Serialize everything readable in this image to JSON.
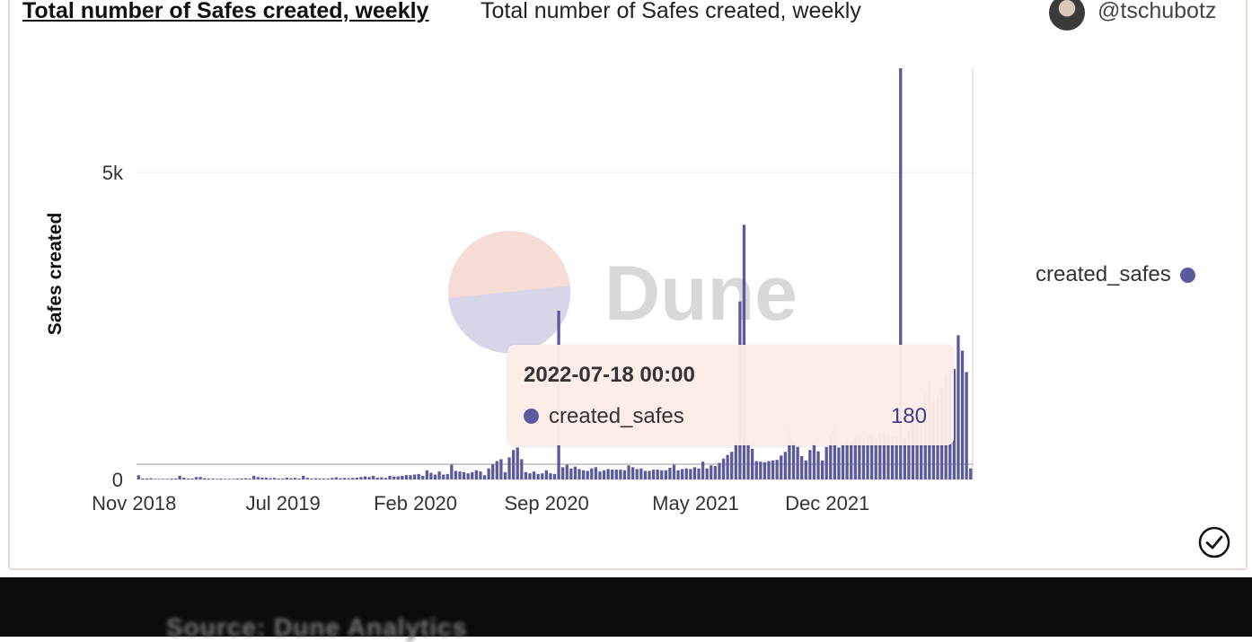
{
  "header": {
    "title_link": "Total number of Safes created, weekly",
    "title_plain": "Total number of Safes created, weekly",
    "username": "@tschubotz",
    "avatar_icon": "user-avatar"
  },
  "watermark": "Dune",
  "tooltip": {
    "date": "2022-07-18 00:00",
    "series": "created_safes",
    "value": "180"
  },
  "legend": {
    "label": "created_safes"
  },
  "status_icon": "check-circle-icon",
  "footer": {
    "caption": "Source: Dune Analytics"
  },
  "colors": {
    "series": "#5b5a9e",
    "tooltip_bg": "#fcece8",
    "grid": "#ececec"
  },
  "chart_data": {
    "type": "bar",
    "title": "Total number of Safes created, weekly",
    "ylabel": "Safes created",
    "xlabel": "",
    "ylim": [
      0,
      6700
    ],
    "yticks": [
      0,
      5000
    ],
    "ytick_labels": [
      "0",
      "5k"
    ],
    "xtick_labels": [
      "Nov 2018",
      "Jul 2019",
      "Feb 2020",
      "Sep 2020",
      "May 2021",
      "Dec 2021"
    ],
    "xtick_dates": [
      "2018-11-01",
      "2019-07-01",
      "2020-02-01",
      "2020-09-01",
      "2021-05-01",
      "2021-12-01"
    ],
    "x_start": "2018-11-05",
    "x_end": "2022-07-25",
    "legend_position": "right",
    "grid": true,
    "series": [
      {
        "name": "created_safes",
        "values": [
          70,
          15,
          15,
          20,
          10,
          10,
          10,
          10,
          15,
          15,
          60,
          30,
          15,
          15,
          40,
          40,
          20,
          15,
          15,
          10,
          15,
          10,
          10,
          10,
          15,
          15,
          20,
          15,
          60,
          40,
          30,
          30,
          20,
          25,
          15,
          15,
          30,
          20,
          25,
          15,
          60,
          25,
          15,
          20,
          15,
          15,
          15,
          25,
          35,
          20,
          25,
          20,
          25,
          30,
          40,
          50,
          40,
          60,
          30,
          35,
          25,
          60,
          50,
          50,
          60,
          70,
          70,
          80,
          90,
          60,
          150,
          110,
          80,
          130,
          80,
          90,
          240,
          140,
          130,
          120,
          100,
          120,
          150,
          130,
          70,
          180,
          250,
          300,
          330,
          120,
          360,
          480,
          520,
          330,
          120,
          100,
          130,
          90,
          100,
          150,
          100,
          90,
          2750,
          200,
          240,
          180,
          210,
          170,
          150,
          140,
          180,
          200,
          130,
          150,
          170,
          160,
          160,
          160,
          150,
          230,
          200,
          170,
          180,
          140,
          140,
          160,
          160,
          150,
          150,
          190,
          240,
          150,
          170,
          180,
          170,
          200,
          180,
          290,
          180,
          230,
          220,
          270,
          340,
          400,
          450,
          620,
          2900,
          4150,
          630,
          500,
          300,
          290,
          280,
          300,
          310,
          320,
          390,
          450,
          810,
          590,
          530,
          380,
          310,
          480,
          590,
          460,
          310,
          530,
          720,
          890,
          520,
          560,
          620,
          610,
          680,
          690,
          660,
          700,
          720,
          650,
          760,
          760,
          740,
          720,
          700,
          6700,
          700,
          800,
          1000,
          1100,
          1250,
          1400,
          1600,
          1300,
          1350,
          1500,
          1700,
          1750,
          1800,
          2350,
          2100,
          1750,
          180
        ]
      }
    ]
  }
}
